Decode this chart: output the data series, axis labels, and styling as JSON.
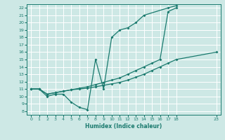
{
  "xlabel": "Humidex (Indice chaleur)",
  "bg_color": "#cde8e5",
  "grid_color": "#ffffff",
  "line_color": "#1a7a6e",
  "xlim": [
    -0.5,
    23.5
  ],
  "ylim": [
    7.5,
    22.5
  ],
  "yticks": [
    8,
    9,
    10,
    11,
    12,
    13,
    14,
    15,
    16,
    17,
    18,
    19,
    20,
    21,
    22
  ],
  "xticks": [
    0,
    1,
    2,
    3,
    4,
    5,
    6,
    7,
    8,
    9,
    10,
    11,
    12,
    13,
    14,
    15,
    16,
    17,
    18,
    23
  ],
  "line1_x": [
    0,
    1,
    2,
    3,
    4,
    5,
    6,
    7,
    8,
    9,
    10,
    11,
    12,
    13,
    14,
    17,
    18
  ],
  "line1_y": [
    11,
    11,
    10,
    10.3,
    10.3,
    9.2,
    8.5,
    8.2,
    15,
    11,
    18,
    19,
    19.3,
    20,
    21,
    22,
    22.3
  ],
  "line2_x": [
    0,
    1,
    2,
    3,
    4,
    5,
    6,
    7,
    8,
    9,
    10,
    11,
    12,
    13,
    14,
    15,
    16,
    17,
    18
  ],
  "line2_y": [
    11,
    11,
    10.3,
    10.5,
    10.7,
    10.9,
    11.1,
    11.3,
    11.6,
    11.9,
    12.2,
    12.5,
    13.0,
    13.5,
    14.0,
    14.5,
    15.0,
    21.5,
    22
  ],
  "line3_x": [
    0,
    1,
    2,
    3,
    4,
    5,
    6,
    7,
    8,
    9,
    10,
    11,
    12,
    13,
    14,
    15,
    16,
    17,
    18,
    23
  ],
  "line3_y": [
    11,
    11,
    10.3,
    10.5,
    10.7,
    10.9,
    11.0,
    11.1,
    11.3,
    11.5,
    11.7,
    11.9,
    12.2,
    12.6,
    13.0,
    13.5,
    14.0,
    14.5,
    15.0,
    16.0
  ]
}
